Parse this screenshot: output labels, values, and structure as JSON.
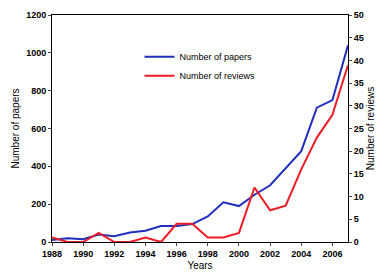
{
  "chart_data": {
    "type": "line",
    "x_label": "Years",
    "y_label": "Number of papers",
    "y2_label": "Number of reviews",
    "x": [
      1988,
      1989,
      1990,
      1991,
      1992,
      1993,
      1994,
      1995,
      1996,
      1997,
      1998,
      1999,
      2000,
      2001,
      2002,
      2003,
      2004,
      2005,
      2006,
      2007
    ],
    "series": [
      {
        "name": "Number of papers",
        "color": "#1f2fbf",
        "values": [
          10,
          20,
          15,
          40,
          30,
          50,
          60,
          85,
          85,
          95,
          135,
          210,
          190,
          250,
          300,
          390,
          480,
          710,
          750,
          1040
        ]
      },
      {
        "name": "Number of reviews",
        "color": "#ee1c25",
        "axis": "y2",
        "values": [
          1,
          0,
          0,
          2,
          0,
          0,
          1,
          0,
          4,
          4,
          1,
          1,
          2,
          12,
          7,
          8,
          16,
          23,
          28,
          39
        ]
      }
    ],
    "xlim": [
      1988,
      2007
    ],
    "xticks": [
      1988,
      1990,
      1992,
      1994,
      1996,
      1998,
      2000,
      2002,
      2004,
      2006
    ],
    "ylim": [
      0,
      1200
    ],
    "yticks": [
      0,
      200,
      400,
      600,
      800,
      1000,
      1200
    ],
    "y2lim": [
      0,
      50
    ],
    "y2ticks": [
      0,
      5,
      10,
      15,
      20,
      25,
      30,
      35,
      40,
      45,
      50
    ],
    "grid": false,
    "legend": "top"
  }
}
